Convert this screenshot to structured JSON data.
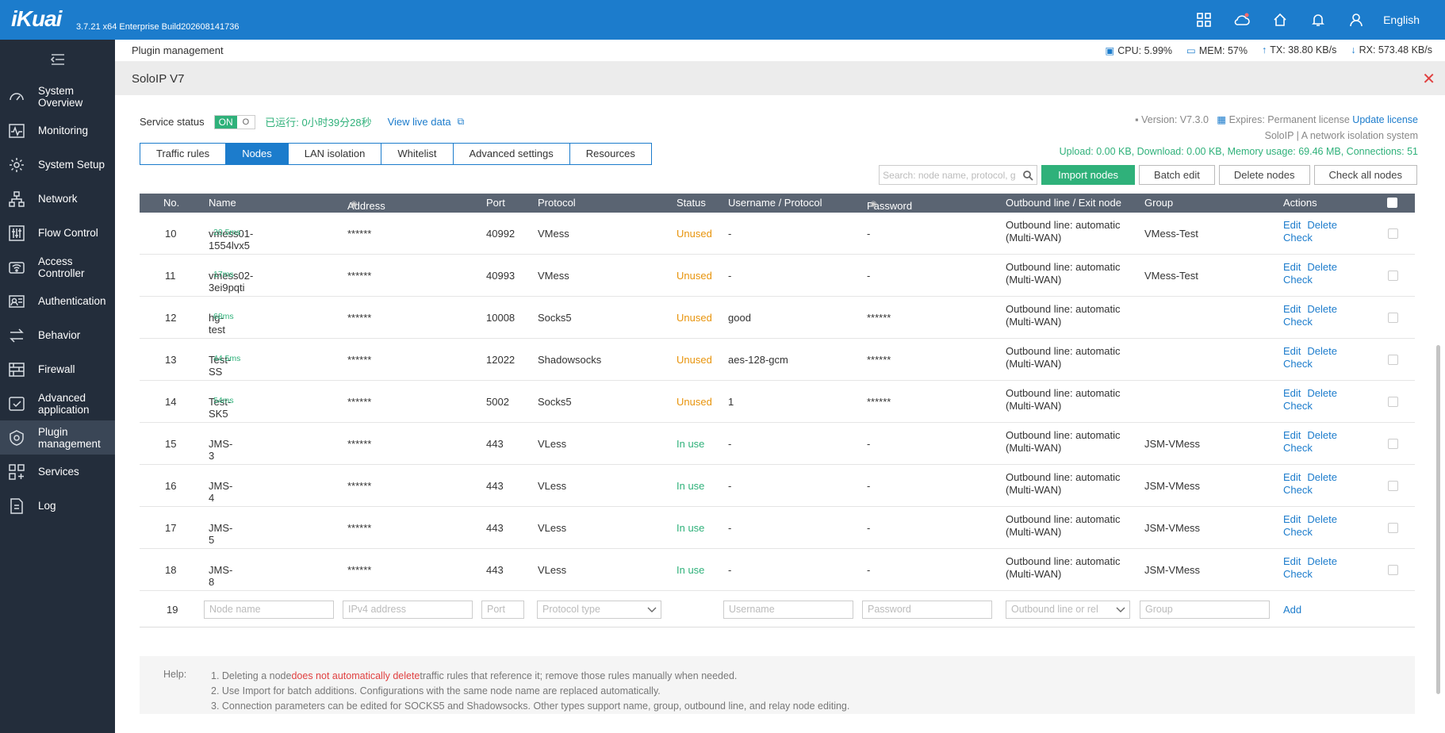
{
  "header": {
    "logo": "iKuai",
    "build": "3.7.21 x64 Enterprise Build202608141736",
    "language": "English",
    "icons": [
      "apps-grid-icon",
      "cloud-icon",
      "home-icon",
      "bell-icon",
      "user-icon"
    ]
  },
  "sidebar": {
    "items": [
      {
        "label": "System Overview",
        "icon": "gauge-icon"
      },
      {
        "label": "Monitoring",
        "icon": "pulse-icon"
      },
      {
        "label": "System Setup",
        "icon": "gear-icon"
      },
      {
        "label": "Network",
        "icon": "network-icon"
      },
      {
        "label": "Flow Control",
        "icon": "sliders-icon"
      },
      {
        "label": "Access Controller",
        "icon": "wifi-icon"
      },
      {
        "label": "Authentication",
        "icon": "id-card-icon"
      },
      {
        "label": "Behavior",
        "icon": "arrows-icon"
      },
      {
        "label": "Firewall",
        "icon": "brick-wall-icon"
      },
      {
        "label": "Advanced application",
        "icon": "check-box-icon"
      },
      {
        "label": "Plugin management",
        "icon": "plugin-icon",
        "active": true
      },
      {
        "label": "Services",
        "icon": "grid-plus-icon"
      },
      {
        "label": "Log",
        "icon": "document-icon"
      }
    ]
  },
  "subheader": {
    "breadcrumb": "Plugin management",
    "cpu": "CPU: 5.99%",
    "mem": "MEM: 57%",
    "tx": "TX: 38.80 KB/s",
    "rx": "RX: 573.48 KB/s"
  },
  "panel": {
    "title": "SoloIP V7",
    "service_status_label": "Service status",
    "toggle_on": "ON",
    "toggle_off": "O",
    "runtime": "已运行: 0小时39分28秒",
    "view_live": "View live data",
    "version": "Version:  V7.3.0",
    "expires": "Expires:  Permanent license",
    "update_license": "Update license",
    "tagline": "SoloIP | A network isolation system",
    "usage": "Upload:  0.00 KB,  Download:  0.00 KB,  Memory usage:  69.46 MB,  Connections:  51"
  },
  "tabs": [
    {
      "label": "Traffic rules",
      "active": false
    },
    {
      "label": "Nodes",
      "active": true
    },
    {
      "label": "LAN isolation",
      "active": false
    },
    {
      "label": "Whitelist",
      "active": false
    },
    {
      "label": "Advanced settings",
      "active": false
    },
    {
      "label": "Resources",
      "active": false
    }
  ],
  "toolbar": {
    "search_placeholder": "Search: node name, protocol, g",
    "import": "Import nodes",
    "batch_edit": "Batch edit",
    "delete_nodes": "Delete nodes",
    "check_all": "Check all nodes"
  },
  "table": {
    "headers": {
      "no": "No.",
      "name": "Name",
      "address": "Address",
      "port": "Port",
      "protocol": "Protocol",
      "status": "Status",
      "user": "Username / Protocol",
      "password": "Password",
      "outbound": "Outbound line / Exit node",
      "group": "Group",
      "actions": "Actions"
    },
    "rows": [
      {
        "no": "10",
        "name": "vmess01-1554lvx5",
        "latency": "20.5ms",
        "address": "******",
        "port": "40992",
        "protocol": "VMess",
        "status": "Unused",
        "user": "-",
        "password": "-",
        "out1": "Outbound line: automatic",
        "out2": "(Multi-WAN)",
        "group": "VMess-Test"
      },
      {
        "no": "11",
        "name": "vmess02-3ei9pqti",
        "latency": "17ms",
        "address": "******",
        "port": "40993",
        "protocol": "VMess",
        "status": "Unused",
        "user": "-",
        "password": "-",
        "out1": "Outbound line: automatic",
        "out2": "(Multi-WAN)",
        "group": "VMess-Test"
      },
      {
        "no": "12",
        "name": "hg-test",
        "latency": "68ms",
        "address": "******",
        "port": "10008",
        "protocol": "Socks5",
        "status": "Unused",
        "user": "good",
        "password": "******",
        "out1": "Outbound line: automatic",
        "out2": "(Multi-WAN)",
        "group": ""
      },
      {
        "no": "13",
        "name": "Test-SS",
        "latency": "44.5ms",
        "address": "******",
        "port": "12022",
        "protocol": "Shadowsocks",
        "status": "Unused",
        "user": "aes-128-gcm",
        "password": "******",
        "out1": "Outbound line: automatic",
        "out2": "(Multi-WAN)",
        "group": ""
      },
      {
        "no": "14",
        "name": "Test-SK5",
        "latency": "54ms",
        "address": "******",
        "port": "5002",
        "protocol": "Socks5",
        "status": "Unused",
        "user": "1",
        "password": "******",
        "out1": "Outbound line: automatic",
        "out2": "(Multi-WAN)",
        "group": ""
      },
      {
        "no": "15",
        "name": "JMS-3",
        "latency": "",
        "address": "******",
        "port": "443",
        "protocol": "VLess",
        "status": "In use",
        "user": "-",
        "password": "-",
        "out1": "Outbound line: automatic",
        "out2": "(Multi-WAN)",
        "group": "JSM-VMess"
      },
      {
        "no": "16",
        "name": "JMS-4",
        "latency": "",
        "address": "******",
        "port": "443",
        "protocol": "VLess",
        "status": "In use",
        "user": "-",
        "password": "-",
        "out1": "Outbound line: automatic",
        "out2": "(Multi-WAN)",
        "group": "JSM-VMess"
      },
      {
        "no": "17",
        "name": "JMS-5",
        "latency": "",
        "address": "******",
        "port": "443",
        "protocol": "VLess",
        "status": "In use",
        "user": "-",
        "password": "-",
        "out1": "Outbound line: automatic",
        "out2": "(Multi-WAN)",
        "group": "JSM-VMess"
      },
      {
        "no": "18",
        "name": "JMS-8",
        "latency": "",
        "address": "******",
        "port": "443",
        "protocol": "VLess",
        "status": "In use",
        "user": "-",
        "password": "-",
        "out1": "Outbound line: automatic",
        "out2": "(Multi-WAN)",
        "group": "JSM-VMess"
      }
    ],
    "actions": {
      "edit": "Edit",
      "delete": "Delete",
      "check": "Check"
    },
    "new_row": {
      "no": "19",
      "name_ph": "Node name",
      "address_ph": "IPv4 address",
      "port_ph": "Port",
      "protocol_ph": "Protocol type",
      "user_ph": "Username",
      "password_ph": "Password",
      "outbound_ph": "Outbound line or rel",
      "group_ph": "Group",
      "add": "Add"
    }
  },
  "help": {
    "label": "Help:",
    "line1_a": "1. Deleting a node",
    "line1_red": "does not automatically delete",
    "line1_b": "traffic rules that reference it; remove those rules manually when needed.",
    "line2": "2. Use Import for batch additions. Configurations with the same node name are replaced automatically.",
    "line3": "3. Connection parameters can be edited for SOCKS5 and Shadowsocks. Other types support name, group, outbound line, and relay node editing."
  },
  "colors": {
    "brand": "#1c7ccc",
    "sidebar": "#232d3b",
    "success": "#2fb17a",
    "warning": "#e8940c",
    "danger": "#e04040"
  }
}
